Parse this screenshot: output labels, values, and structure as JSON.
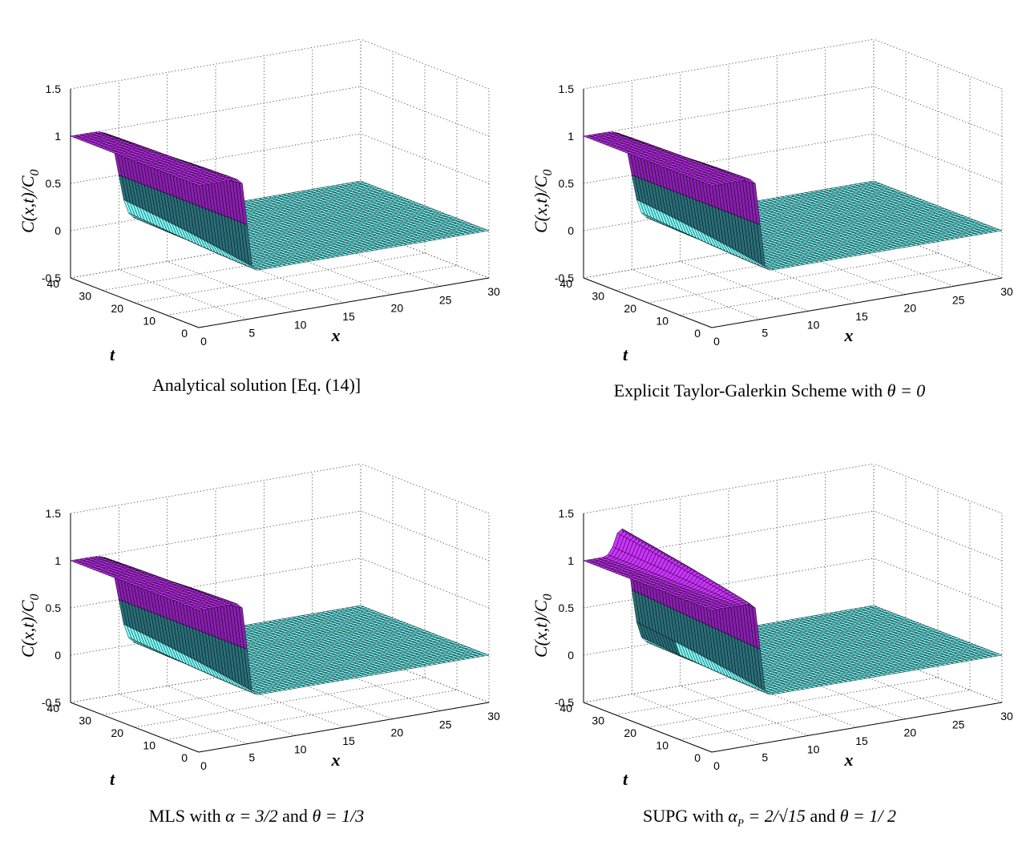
{
  "chart_data": [
    {
      "type": "surface",
      "caption": "Analytical solution [Eq. (14)]",
      "xlabel": "x",
      "ylabel": "t",
      "zlabel": "C(x,t)/C",
      "zlabel_sub": "0",
      "xlim": [
        0,
        30
      ],
      "ylim": [
        0,
        40
      ],
      "zlim": [
        -0.5,
        1.5
      ],
      "xticks": [
        "0",
        "5",
        "10",
        "15",
        "20",
        "25",
        "30"
      ],
      "yticks": [
        "0",
        "10",
        "20",
        "30",
        "40"
      ],
      "zticks": [
        "-0.5",
        "0",
        "0.5",
        "1",
        "1.5"
      ],
      "upstream_value": 1,
      "downstream_value": 0,
      "front_x": 5,
      "overshoot": 0,
      "colors": {
        "upstream": "#cc33ff",
        "downstream": "#7fffff",
        "grid_line": "#000000"
      }
    },
    {
      "type": "surface",
      "caption": "Explicit Taylor-Galerkin Scheme with θ = 0",
      "xlabel": "x",
      "ylabel": "t",
      "zlabel": "C(x,t)/C",
      "zlabel_sub": "0",
      "xlim": [
        0,
        30
      ],
      "ylim": [
        0,
        40
      ],
      "zlim": [
        -0.5,
        1.5
      ],
      "xticks": [
        "0",
        "5",
        "10",
        "15",
        "20",
        "25",
        "30"
      ],
      "yticks": [
        "0",
        "10",
        "20",
        "30",
        "40"
      ],
      "zticks": [
        "-0.5",
        "0",
        "0.5",
        "1",
        "1.5"
      ],
      "upstream_value": 1,
      "downstream_value": 0,
      "front_x": 5,
      "overshoot": 0,
      "colors": {
        "upstream": "#cc33ff",
        "downstream": "#7fffff",
        "grid_line": "#000000"
      }
    },
    {
      "type": "surface",
      "caption": "MLS with α = 3/2 and θ = 1/3",
      "xlabel": "x",
      "ylabel": "t",
      "zlabel": "C(x,t)/C",
      "zlabel_sub": "0",
      "xlim": [
        0,
        30
      ],
      "ylim": [
        0,
        40
      ],
      "zlim": [
        -0.5,
        1.5
      ],
      "xticks": [
        "0",
        "5",
        "10",
        "15",
        "20",
        "25",
        "30"
      ],
      "yticks": [
        "0",
        "10",
        "20",
        "30",
        "40"
      ],
      "zticks": [
        "-0.5",
        "0",
        "0.5",
        "1",
        "1.5"
      ],
      "upstream_value": 1,
      "downstream_value": 0,
      "front_x": 5,
      "overshoot": 0,
      "colors": {
        "upstream": "#cc33ff",
        "downstream": "#7fffff",
        "grid_line": "#000000"
      }
    },
    {
      "type": "surface",
      "caption": "SUPG with α_P = 2/√15 and θ = 1/2",
      "xlabel": "x",
      "ylabel": "t",
      "zlabel": "C(x,t)/C",
      "zlabel_sub": "0",
      "xlim": [
        0,
        30
      ],
      "ylim": [
        0,
        40
      ],
      "zlim": [
        -0.5,
        1.5
      ],
      "xticks": [
        "0",
        "5",
        "10",
        "15",
        "20",
        "25",
        "30"
      ],
      "yticks": [
        "0",
        "10",
        "20",
        "30",
        "40"
      ],
      "zticks": [
        "-0.5",
        "0",
        "0.5",
        "1",
        "1.5"
      ],
      "upstream_value": 1,
      "downstream_value": 0,
      "front_x": 5,
      "overshoot": 0.35,
      "colors": {
        "upstream": "#cc33ff",
        "downstream": "#7fffff",
        "grid_line": "#000000"
      }
    }
  ],
  "captions": {
    "c1": "Analytical solution [Eq. (14)]",
    "c2_text": "Explicit Taylor-Galerkin Scheme with",
    "c2_math": "θ = 0",
    "c3_text1": "MLS with",
    "c3_math1": "α = 3/2",
    "c3_text2": "and",
    "c3_math2": "θ = 1/3",
    "c4_text1": "SUPG with",
    "c4_math1": "α",
    "c4_sub1": "P",
    "c4_math1b": "= 2/√15",
    "c4_text2": "and",
    "c4_math2": "θ = 1/ 2"
  }
}
